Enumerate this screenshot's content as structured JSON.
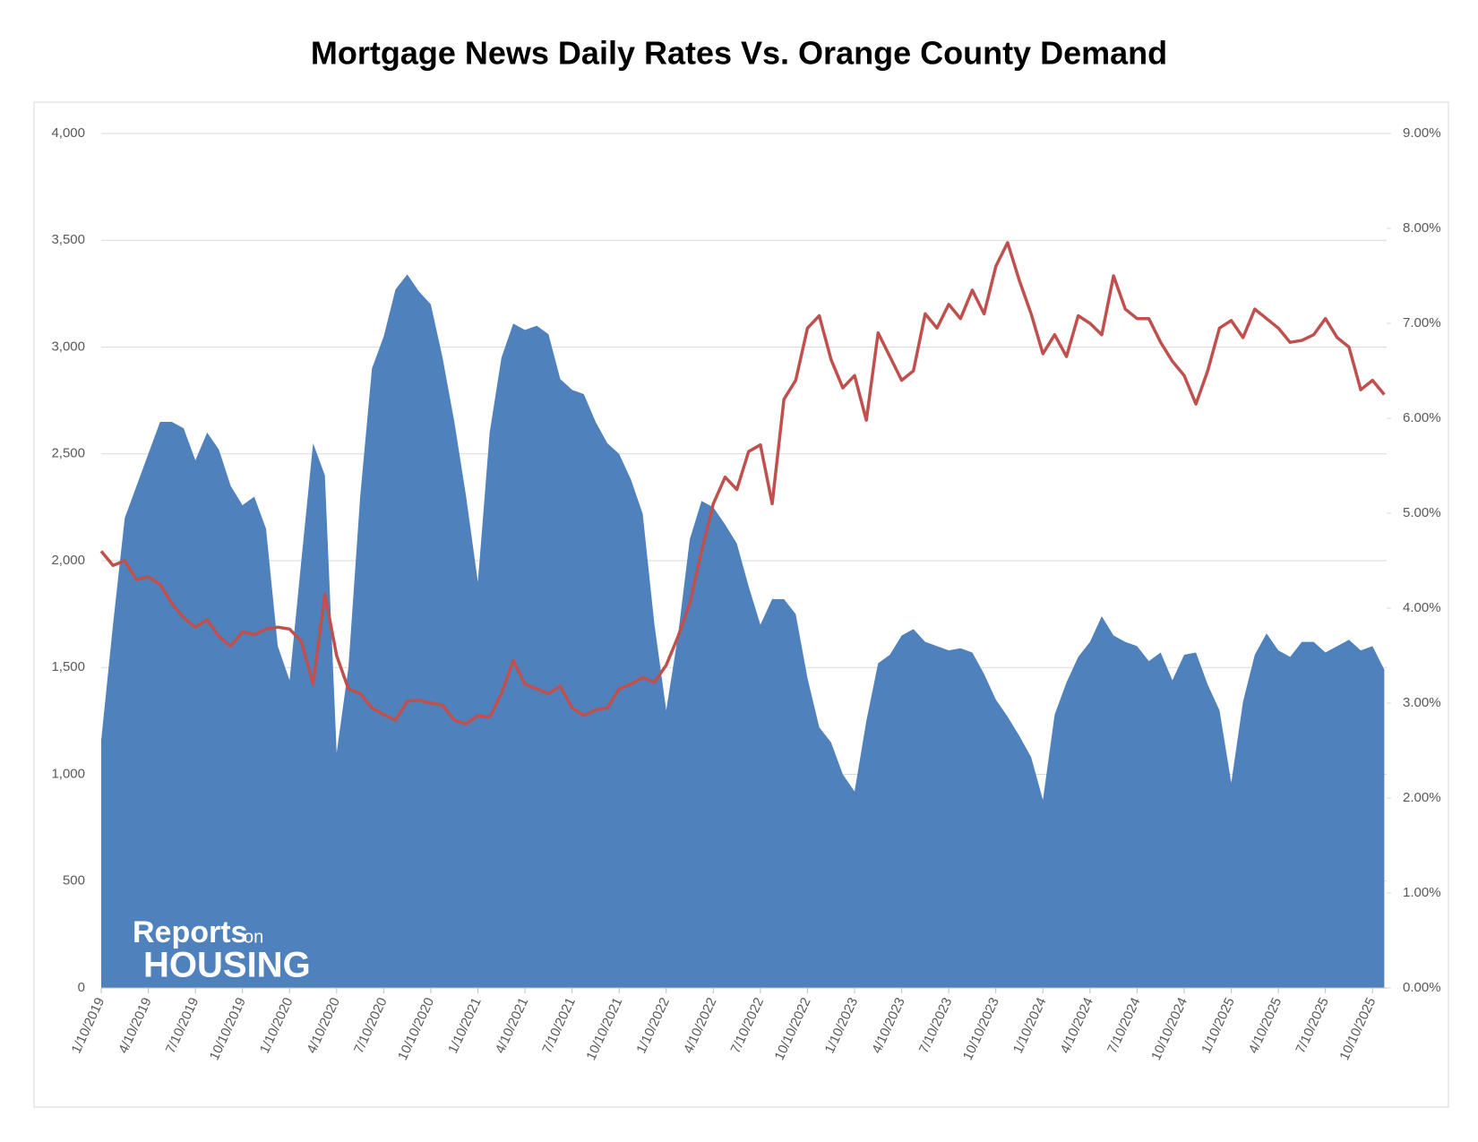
{
  "chart_data": {
    "type": "area-line",
    "title": "Mortgage News Daily Rates Vs. Orange County Demand",
    "watermark": {
      "line1": "Reports",
      "line2": "on",
      "line3": "HOUSING"
    },
    "categories": [
      "1/10/2019",
      null,
      null,
      null,
      "4/10/2019",
      null,
      null,
      null,
      "7/10/2019",
      null,
      null,
      null,
      "10/10/2019",
      null,
      null,
      null,
      "1/10/2020",
      null,
      null,
      null,
      "4/10/2020",
      null,
      null,
      null,
      "7/10/2020",
      null,
      null,
      null,
      "10/10/2020",
      null,
      null,
      null,
      "1/10/2021",
      null,
      null,
      null,
      "4/10/2021",
      null,
      null,
      null,
      "7/10/2021",
      null,
      null,
      null,
      "10/10/2021",
      null,
      null,
      null,
      "1/10/2022",
      null,
      null,
      null,
      "4/10/2022",
      null,
      null,
      null,
      "7/10/2022",
      null,
      null,
      null,
      "10/10/2022",
      null,
      null,
      null,
      "1/10/2023",
      null,
      null,
      null,
      "4/10/2023",
      null,
      null,
      null,
      "7/10/2023",
      null,
      null,
      null,
      "10/10/2023",
      null,
      null,
      null,
      "1/10/2024",
      null,
      null,
      null,
      "4/10/2024",
      null,
      null,
      null,
      "7/10/2024",
      null,
      null,
      null,
      "10/10/2024",
      null,
      null,
      null,
      "1/10/2025",
      null,
      null,
      null,
      "4/10/2025",
      null,
      null,
      null,
      "7/10/2025",
      null,
      null,
      null,
      "10/10/2025",
      null
    ],
    "series": [
      {
        "type": "area",
        "color": "#4f81bd",
        "values": [
          1160,
          1700,
          2200,
          2350,
          2500,
          2650,
          2650,
          2620,
          2470,
          2600,
          2520,
          2350,
          2260,
          2300,
          2150,
          1600,
          1440,
          2000,
          2550,
          2400,
          1100,
          1500,
          2300,
          2900,
          3050,
          3270,
          3340,
          3260,
          3200,
          2950,
          2650,
          2300,
          1900,
          2600,
          2950,
          3110,
          3080,
          3100,
          3060,
          2850,
          2800,
          2780,
          2650,
          2550,
          2500,
          2380,
          2220,
          1700,
          1300,
          1650,
          2100,
          2280,
          2250,
          2170,
          2080,
          1880,
          1700,
          1820,
          1820,
          1750,
          1450,
          1220,
          1150,
          1000,
          920,
          1250,
          1520,
          1560,
          1650,
          1680,
          1620,
          1600,
          1580,
          1590,
          1570,
          1470,
          1350,
          1270,
          1180,
          1080,
          880,
          1280,
          1430,
          1550,
          1620,
          1740,
          1650,
          1620,
          1600,
          1530,
          1570,
          1440,
          1560,
          1570,
          1420,
          1300,
          960,
          1340,
          1560,
          1660,
          1580,
          1550,
          1620,
          1620,
          1570,
          1600,
          1630,
          1580,
          1600,
          1490
        ]
      },
      {
        "type": "line",
        "axis": "y2",
        "color": "#c0504d",
        "values": [
          4.6,
          4.45,
          4.5,
          4.3,
          4.33,
          4.25,
          4.05,
          3.9,
          3.8,
          3.88,
          3.7,
          3.6,
          3.75,
          3.72,
          3.78,
          3.8,
          3.78,
          3.65,
          3.2,
          4.15,
          3.5,
          3.15,
          3.1,
          2.95,
          2.88,
          2.82,
          3.02,
          3.03,
          3.0,
          2.98,
          2.82,
          2.78,
          2.87,
          2.85,
          3.1,
          3.45,
          3.2,
          3.15,
          3.1,
          3.18,
          2.95,
          2.87,
          2.93,
          2.95,
          3.15,
          3.2,
          3.27,
          3.22,
          3.4,
          3.7,
          4.05,
          4.6,
          5.1,
          5.38,
          5.25,
          5.65,
          5.72,
          5.1,
          6.2,
          6.4,
          6.95,
          7.08,
          6.62,
          6.32,
          6.45,
          5.98,
          6.9,
          6.65,
          6.4,
          6.5,
          7.1,
          6.95,
          7.2,
          7.05,
          7.35,
          7.1,
          7.6,
          7.85,
          7.45,
          7.1,
          6.68,
          6.88,
          6.65,
          7.08,
          7.0,
          6.88,
          7.5,
          7.15,
          7.05,
          7.05,
          6.8,
          6.6,
          6.45,
          6.15,
          6.5,
          6.95,
          7.03,
          6.85,
          7.15,
          7.05,
          6.95,
          6.8,
          6.82,
          6.88,
          7.05,
          6.85,
          6.75,
          6.3,
          6.4,
          6.25
        ]
      }
    ],
    "ylim": [
      0,
      4000
    ],
    "yticks": [
      0,
      500,
      {
        "value": 1000,
        "label": "1,000"
      },
      {
        "value": 1500,
        "label": "1,500"
      },
      {
        "value": 2000,
        "label": "2,000"
      },
      {
        "value": 2500,
        "label": "2,500"
      },
      {
        "value": 3000,
        "label": "3,000"
      },
      {
        "value": 3500,
        "label": "3,500"
      },
      {
        "value": 4000,
        "label": "4,000"
      }
    ],
    "y2lim": [
      0,
      9
    ],
    "y2ticks": [
      {
        "value": 0,
        "label": "0.00%"
      },
      {
        "value": 1,
        "label": "1.00%"
      },
      {
        "value": 2,
        "label": "2.00%"
      },
      {
        "value": 3,
        "label": "3.00%"
      },
      {
        "value": 4,
        "label": "4.00%"
      },
      {
        "value": 5,
        "label": "5.00%"
      },
      {
        "value": 6,
        "label": "6.00%"
      },
      {
        "value": 7,
        "label": "7.00%"
      },
      {
        "value": 8,
        "label": "8.00%"
      },
      {
        "value": 9,
        "label": "9.00%"
      }
    ],
    "grid": true
  }
}
